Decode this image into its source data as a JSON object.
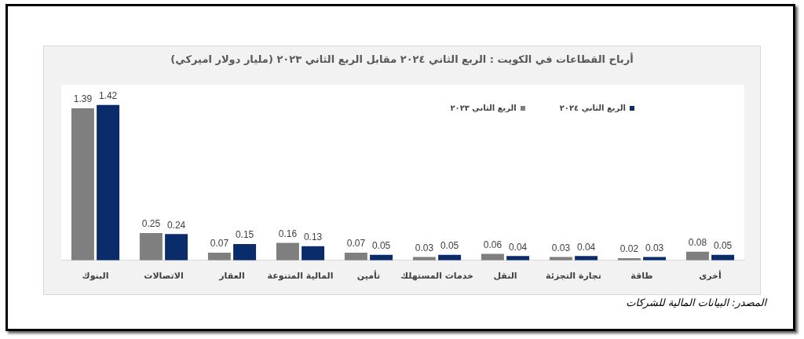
{
  "chart_data": {
    "type": "bar",
    "title": "أرباح القطاعات في الكويت : الربع الثاني ٢٠٢٤ مقابل الربع الثاني ٢٠٢٣ (مليار دولار اميركي)",
    "categories": [
      "البنوك",
      "الاتصالات",
      "العقار",
      "المالية المتنوعة",
      "تأمين",
      "خدمات المستهلك",
      "النقل",
      "تجارة التجزئة",
      "طاقة",
      "أخرى"
    ],
    "series": [
      {
        "name": "الربع الثاني ٢٠٢٣",
        "color": "#7f7f7f",
        "values": [
          1.39,
          0.25,
          0.07,
          0.16,
          0.07,
          0.03,
          0.06,
          0.03,
          0.02,
          0.08
        ]
      },
      {
        "name": "الربع الثاني ٢٠٢٤",
        "color": "#0b2c6b",
        "values": [
          1.42,
          0.24,
          0.15,
          0.13,
          0.05,
          0.05,
          0.04,
          0.04,
          0.03,
          0.05
        ]
      }
    ],
    "data_labels": true,
    "legend": "top right",
    "grid": false,
    "annotations": [
      "المصدر: البيانات المالية للشركات"
    ]
  }
}
